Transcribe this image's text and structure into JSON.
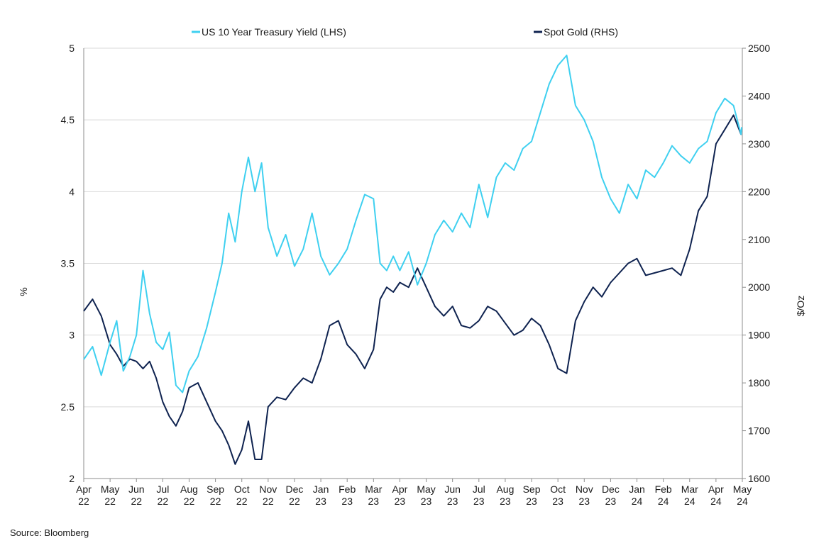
{
  "source_label": "Source: Bloomberg",
  "colors": {
    "treasury": "#3fd0f0",
    "gold": "#0f2350",
    "grid": "#d9d9d9",
    "axis": "#8c8c8c"
  },
  "chart_data": {
    "type": "line",
    "title": "",
    "legend_position": "top",
    "grid": true,
    "x_axis": {
      "label": "",
      "range": [
        "Apr 22",
        "May 24"
      ],
      "ticks": [
        [
          "Apr",
          "22"
        ],
        [
          "May",
          "22"
        ],
        [
          "Jun",
          "22"
        ],
        [
          "Jul",
          "22"
        ],
        [
          "Aug",
          "22"
        ],
        [
          "Sep",
          "22"
        ],
        [
          "Oct",
          "22"
        ],
        [
          "Nov",
          "22"
        ],
        [
          "Dec",
          "22"
        ],
        [
          "Jan",
          "23"
        ],
        [
          "Feb",
          "23"
        ],
        [
          "Mar",
          "23"
        ],
        [
          "Apr",
          "23"
        ],
        [
          "May",
          "23"
        ],
        [
          "Jun",
          "23"
        ],
        [
          "Jul",
          "23"
        ],
        [
          "Aug",
          "23"
        ],
        [
          "Sep",
          "23"
        ],
        [
          "Oct",
          "23"
        ],
        [
          "Nov",
          "23"
        ],
        [
          "Dec",
          "23"
        ],
        [
          "Jan",
          "24"
        ],
        [
          "Feb",
          "24"
        ],
        [
          "Mar",
          "24"
        ],
        [
          "Apr",
          "24"
        ],
        [
          "May",
          "24"
        ]
      ]
    },
    "y_axis_left": {
      "label": "%",
      "range": [
        2,
        5
      ],
      "ticks": [
        "2",
        "2.5",
        "3",
        "3.5",
        "4",
        "4.5",
        "5"
      ]
    },
    "y_axis_right": {
      "label": "$/Oz",
      "range": [
        1600,
        2500
      ],
      "ticks": [
        "1600",
        "1700",
        "1800",
        "1900",
        "2000",
        "2100",
        "2200",
        "2300",
        "2400",
        "2500"
      ]
    },
    "series": [
      {
        "name": "US 10 Year Treasury Yield (LHS)",
        "axis": "left",
        "x": [
          "Apr 22",
          "Apr 22",
          "Apr 22",
          "May 22",
          "May 22",
          "May 22",
          "May 22",
          "Jun 22",
          "Jun 22",
          "Jun 22",
          "Jun 22",
          "Jul 22",
          "Jul 22",
          "Jul 22",
          "Jul 22",
          "Aug 22",
          "Aug 22",
          "Aug 22",
          "Sep 22",
          "Sep 22",
          "Sep 22",
          "Sep 22",
          "Oct 22",
          "Oct 22",
          "Oct 22",
          "Oct 22",
          "Nov 22",
          "Nov 22",
          "Nov 22",
          "Dec 22",
          "Dec 22",
          "Dec 22",
          "Jan 23",
          "Jan 23",
          "Jan 23",
          "Feb 23",
          "Feb 23",
          "Feb 23",
          "Mar 23",
          "Mar 23",
          "Mar 23",
          "Mar 23",
          "Apr 23",
          "Apr 23",
          "Apr 23",
          "May 23",
          "May 23",
          "May 23",
          "Jun 23",
          "Jun 23",
          "Jun 23",
          "Jul 23",
          "Jul 23",
          "Jul 23",
          "Aug 23",
          "Aug 23",
          "Aug 23",
          "Sep 23",
          "Sep 23",
          "Sep 23",
          "Oct 23",
          "Oct 23",
          "Oct 23",
          "Nov 23",
          "Nov 23",
          "Nov 23",
          "Dec 23",
          "Dec 23",
          "Dec 23",
          "Jan 24",
          "Jan 24",
          "Jan 24",
          "Feb 24",
          "Feb 24",
          "Feb 24",
          "Mar 24",
          "Mar 24",
          "Mar 24",
          "Apr 24",
          "Apr 24",
          "Apr 24",
          "May 24",
          "May 24"
        ],
        "values": [
          2.83,
          2.92,
          2.72,
          2.95,
          3.1,
          2.75,
          2.85,
          3.0,
          3.45,
          3.15,
          2.95,
          2.9,
          3.02,
          2.65,
          2.6,
          2.75,
          2.85,
          3.05,
          3.3,
          3.5,
          3.85,
          3.65,
          4.0,
          4.24,
          4.0,
          4.2,
          3.75,
          3.55,
          3.7,
          3.48,
          3.6,
          3.85,
          3.55,
          3.42,
          3.5,
          3.6,
          3.8,
          3.98,
          3.95,
          3.5,
          3.45,
          3.55,
          3.45,
          3.58,
          3.35,
          3.5,
          3.7,
          3.8,
          3.72,
          3.85,
          3.75,
          4.05,
          3.82,
          4.1,
          4.2,
          4.15,
          4.3,
          4.35,
          4.55,
          4.75,
          4.88,
          4.95,
          4.6,
          4.5,
          4.35,
          4.1,
          3.95,
          3.85,
          4.05,
          3.95,
          4.15,
          4.1,
          4.2,
          4.32,
          4.25,
          4.2,
          4.3,
          4.35,
          4.55,
          4.65,
          4.6,
          4.4,
          4.45
        ]
      },
      {
        "name": "Spot Gold (RHS)",
        "axis": "right",
        "x": [
          "Apr 22",
          "Apr 22",
          "Apr 22",
          "May 22",
          "May 22",
          "May 22",
          "May 22",
          "Jun 22",
          "Jun 22",
          "Jun 22",
          "Jun 22",
          "Jul 22",
          "Jul 22",
          "Jul 22",
          "Jul 22",
          "Aug 22",
          "Aug 22",
          "Aug 22",
          "Sep 22",
          "Sep 22",
          "Sep 22",
          "Sep 22",
          "Oct 22",
          "Oct 22",
          "Oct 22",
          "Oct 22",
          "Nov 22",
          "Nov 22",
          "Nov 22",
          "Dec 22",
          "Dec 22",
          "Dec 22",
          "Jan 23",
          "Jan 23",
          "Jan 23",
          "Feb 23",
          "Feb 23",
          "Feb 23",
          "Mar 23",
          "Mar 23",
          "Mar 23",
          "Mar 23",
          "Apr 23",
          "Apr 23",
          "Apr 23",
          "May 23",
          "May 23",
          "May 23",
          "Jun 23",
          "Jun 23",
          "Jun 23",
          "Jul 23",
          "Jul 23",
          "Jul 23",
          "Aug 23",
          "Aug 23",
          "Aug 23",
          "Sep 23",
          "Sep 23",
          "Sep 23",
          "Oct 23",
          "Oct 23",
          "Oct 23",
          "Nov 23",
          "Nov 23",
          "Nov 23",
          "Dec 23",
          "Dec 23",
          "Dec 23",
          "Jan 24",
          "Jan 24",
          "Jan 24",
          "Feb 24",
          "Feb 24",
          "Feb 24",
          "Mar 24",
          "Mar 24",
          "Mar 24",
          "Apr 24",
          "Apr 24",
          "Apr 24",
          "May 24",
          "May 24"
        ],
        "values": [
          1950,
          1975,
          1940,
          1880,
          1860,
          1835,
          1850,
          1845,
          1830,
          1845,
          1810,
          1760,
          1730,
          1710,
          1740,
          1790,
          1800,
          1760,
          1720,
          1700,
          1670,
          1630,
          1660,
          1720,
          1640,
          1640,
          1750,
          1770,
          1765,
          1790,
          1810,
          1800,
          1850,
          1920,
          1930,
          1880,
          1860,
          1830,
          1870,
          1975,
          2000,
          1990,
          2010,
          2000,
          2040,
          2000,
          1960,
          1940,
          1960,
          1920,
          1915,
          1930,
          1960,
          1950,
          1925,
          1900,
          1910,
          1935,
          1920,
          1880,
          1830,
          1820,
          1930,
          1970,
          2000,
          1980,
          2010,
          2030,
          2050,
          2060,
          2025,
          2030,
          2035,
          2040,
          2025,
          2080,
          2160,
          2190,
          2300,
          2330,
          2360,
          2320,
          2320
        ]
      }
    ]
  }
}
